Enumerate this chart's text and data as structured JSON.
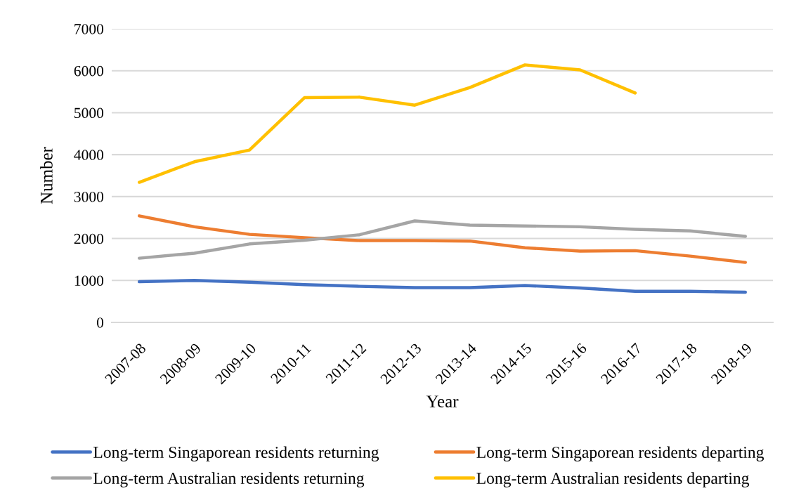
{
  "chart_data": {
    "type": "line",
    "xlabel": "Year",
    "ylabel": "Number",
    "categories": [
      "2007-08",
      "2008-09",
      "2009-10",
      "2010-11",
      "2011-12",
      "2012-13",
      "2013-14",
      "2014-15",
      "2015-16",
      "2016-17",
      "2017-18",
      "2018-19"
    ],
    "series": [
      {
        "name": "Long-term Singaporean residents returning",
        "color": "#4472c4",
        "values": [
          970,
          1000,
          960,
          900,
          860,
          830,
          830,
          880,
          820,
          740,
          740,
          720
        ]
      },
      {
        "name": "Long-term Singaporean residents departing",
        "color": "#ed7d31",
        "values": [
          2540,
          2280,
          2100,
          2020,
          1950,
          1950,
          1940,
          1780,
          1700,
          1710,
          1580,
          1430
        ]
      },
      {
        "name": "Long-term Australian residents returning",
        "color": "#a5a5a5",
        "values": [
          1530,
          1650,
          1870,
          1960,
          2090,
          2420,
          2320,
          2300,
          2280,
          2220,
          2180,
          2050
        ]
      },
      {
        "name": "Long-term Australian residents departing",
        "color": "#ffc000",
        "values": [
          3340,
          3830,
          4110,
          5360,
          5370,
          5180,
          5600,
          6140,
          6020,
          5470,
          null,
          null
        ]
      }
    ],
    "ylim": [
      0,
      7000
    ],
    "yticks": [
      0,
      1000,
      2000,
      3000,
      4000,
      5000,
      6000,
      7000
    ],
    "grid": "y",
    "legend": "bottom",
    "line_style": "solid"
  }
}
